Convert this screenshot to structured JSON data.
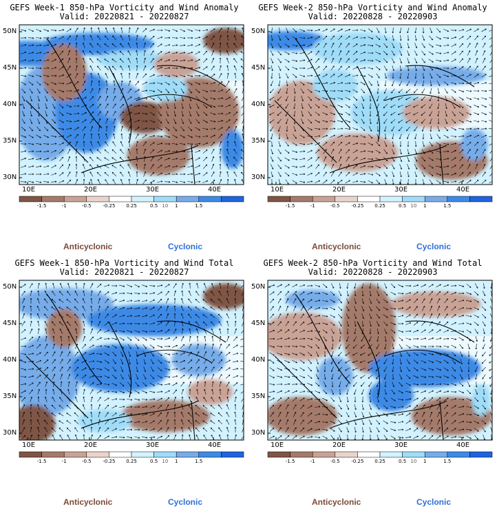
{
  "colors": {
    "neg3": "#7f5545",
    "neg2": "#a47a6a",
    "neg1": "#c9a296",
    "neg0": "#e9d4cc",
    "zero": "#ffffff",
    "pos0": "#d2f2ff",
    "pos1": "#9fdcf8",
    "pos2": "#76ace9",
    "pos3": "#3c8ae6",
    "pos4": "#1f64de",
    "anticyclonic": "#7a4a37",
    "cyclonic": "#2f6fd6"
  },
  "axes": {
    "y_ticks": [
      "50N",
      "45N",
      "40N",
      "35N",
      "30N"
    ],
    "x_ticks": [
      "10E",
      "20E",
      "30E",
      "40E"
    ]
  },
  "colorbar": {
    "labels": [
      "-1.5",
      "-1",
      "-0.5",
      "-0.25",
      "0.25",
      "0.5",
      "1",
      "1.5"
    ],
    "scale_note": "10"
  },
  "panels": [
    {
      "title": "GEFS Week-1 850-hPa Vorticity and Wind Anomaly",
      "valid": "Valid: 20220821 - 20220827",
      "anticyclonic_label": "Anticyclonic",
      "cyclonic_label": "Cyclonic"
    },
    {
      "title": "GEFS Week-2 850-hPa Vorticity and Wind Anomaly",
      "valid": "Valid: 20220828 - 20220903",
      "anticyclonic_label": "Anticyclonic",
      "cyclonic_label": "Cyclonic"
    },
    {
      "title": "GEFS Week-1 850-hPa Vorticity and Wind Total",
      "valid": "Valid: 20220821 - 20220827",
      "anticyclonic_label": "Anticyclonic",
      "cyclonic_label": "Cyclonic"
    },
    {
      "title": "GEFS Week-2 850-hPa Vorticity and Wind Total",
      "valid": "Valid: 20220828 - 20220903",
      "anticyclonic_label": "Anticyclonic",
      "cyclonic_label": "Cyclonic"
    }
  ]
}
